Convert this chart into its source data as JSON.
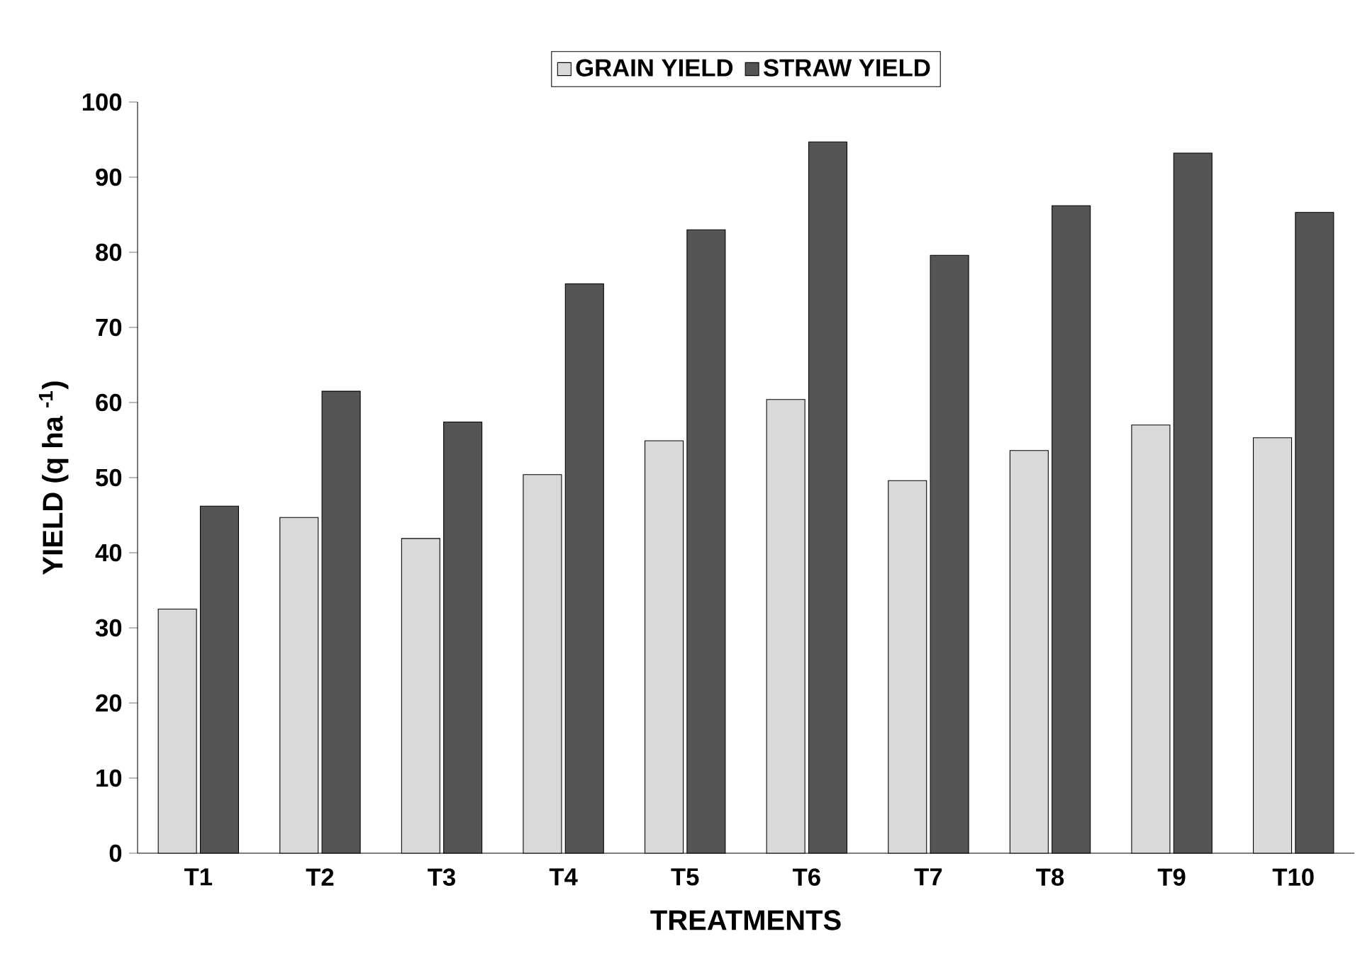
{
  "chart_data": {
    "type": "bar",
    "categories": [
      "T1",
      "T2",
      "T3",
      "T4",
      "T5",
      "T6",
      "T7",
      "T8",
      "T9",
      "T10"
    ],
    "series": [
      {
        "name": "GRAIN YIELD",
        "color": "#d9d9d9",
        "values": [
          32.5,
          44.7,
          41.9,
          50.4,
          54.9,
          60.4,
          49.6,
          53.6,
          57.0,
          55.3
        ]
      },
      {
        "name": "STRAW YIELD",
        "color": "#555555",
        "values": [
          46.2,
          61.5,
          57.4,
          75.8,
          83.0,
          94.7,
          79.6,
          86.2,
          93.2,
          85.3
        ]
      }
    ],
    "xlabel": "TREATMENTS",
    "ylabel": "YIELD (q ha $^{-1}$)",
    "ylim": [
      0,
      100
    ],
    "yticks": [
      0,
      10,
      20,
      30,
      40,
      50,
      60,
      70,
      80,
      90,
      100
    ],
    "legend": "top",
    "grid": false
  }
}
